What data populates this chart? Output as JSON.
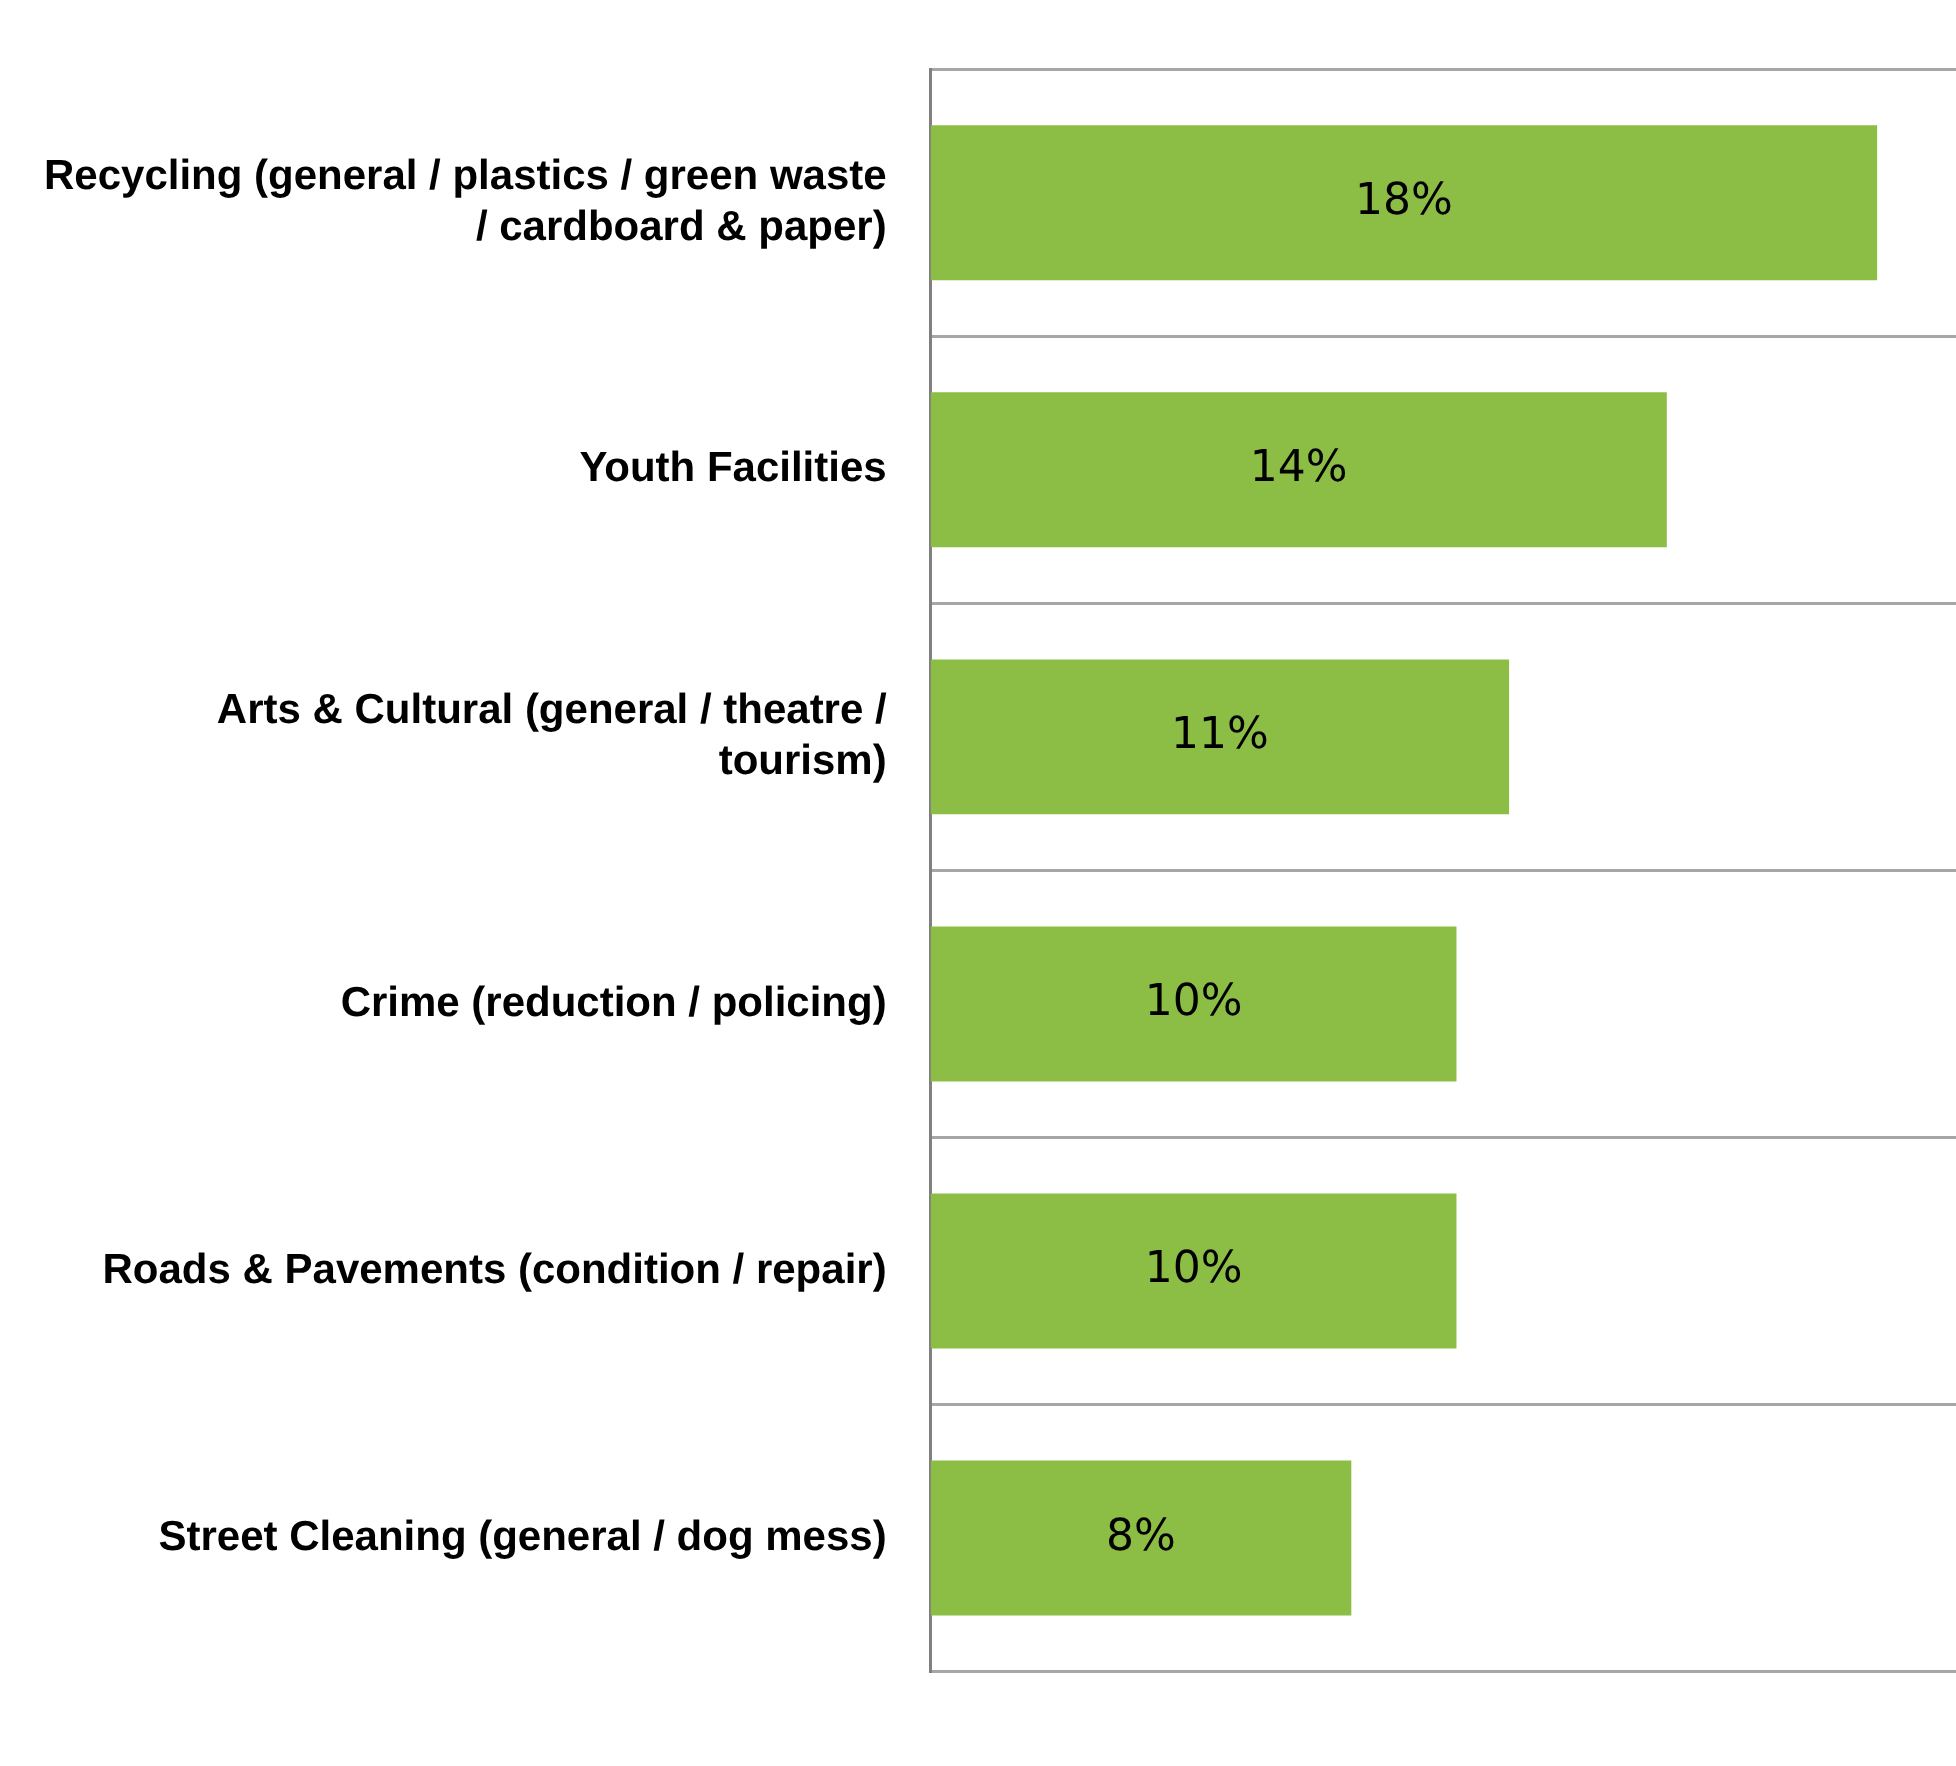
{
  "chart_data": {
    "type": "bar",
    "orientation": "horizontal",
    "categories": [
      "Recycling (general / plastics / green waste / cardboard & paper)",
      "Youth Facilities",
      "Arts & Cultural (general / theatre / tourism)",
      "Crime (reduction / policing)",
      "Roads & Pavements (condition / repair)",
      "Street Cleaning (general / dog mess)"
    ],
    "values": [
      18,
      14,
      11,
      10,
      10,
      8
    ],
    "value_labels": [
      "18%",
      "14%",
      "11%",
      "10%",
      "10%",
      "8%"
    ],
    "color": "#8cbd45",
    "xlim": [
      0,
      19.5
    ],
    "grid": "y",
    "tick_labels": "y",
    "legend": false
  }
}
